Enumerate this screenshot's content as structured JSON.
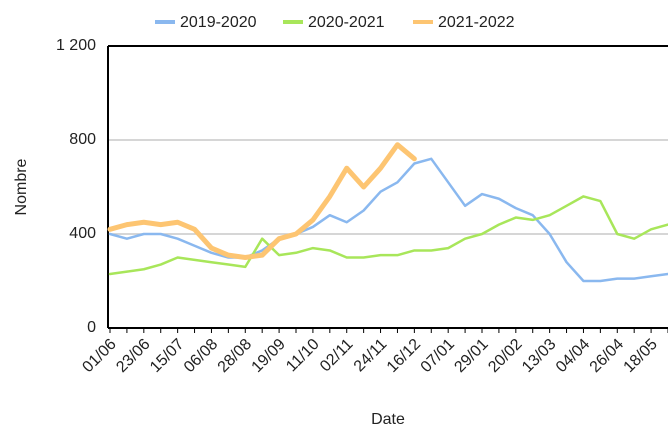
{
  "chart_data": {
    "type": "line",
    "x_label": "Date",
    "y_label": "Nombre",
    "categories": [
      "01/06",
      null,
      "23/06",
      null,
      "15/07",
      null,
      "06/08",
      null,
      "28/08",
      null,
      "19/09",
      null,
      "11/10",
      null,
      "02/11",
      null,
      "24/11",
      null,
      "16/12",
      null,
      "07/01",
      null,
      "29/01",
      null,
      "20/02",
      null,
      "13/03",
      null,
      "04/04",
      null,
      "26/04",
      null,
      "18/05",
      null
    ],
    "series": [
      {
        "name": "2019-2020",
        "color": "#8ab8ef",
        "values": [
          400,
          380,
          400,
          400,
          380,
          350,
          320,
          300,
          300,
          330,
          380,
          400,
          430,
          480,
          450,
          500,
          580,
          620,
          700,
          720,
          620,
          520,
          570,
          550,
          510,
          480,
          400,
          280,
          200,
          200,
          210,
          210,
          220,
          230
        ]
      },
      {
        "name": "2020-2021",
        "color": "#a8e65a",
        "values": [
          230,
          240,
          250,
          270,
          300,
          290,
          280,
          270,
          260,
          380,
          310,
          320,
          340,
          330,
          300,
          300,
          310,
          310,
          330,
          330,
          340,
          380,
          400,
          440,
          470,
          460,
          480,
          520,
          560,
          540,
          400,
          380,
          420,
          440
        ]
      },
      {
        "name": "2021-2022",
        "color": "#fdc572",
        "values": [
          420,
          440,
          450,
          440,
          450,
          420,
          340,
          310,
          300,
          310,
          380,
          400,
          460,
          560,
          680,
          600,
          680,
          780,
          720,
          null,
          null,
          null,
          null,
          null,
          null,
          null,
          null,
          null,
          null,
          null,
          null,
          null,
          null,
          null
        ]
      }
    ],
    "ylim": [
      0,
      1200
    ],
    "yticks": [
      0,
      400,
      800,
      {
        "value": 1200,
        "label": "1 200"
      }
    ],
    "grid": true,
    "legend": "top"
  }
}
